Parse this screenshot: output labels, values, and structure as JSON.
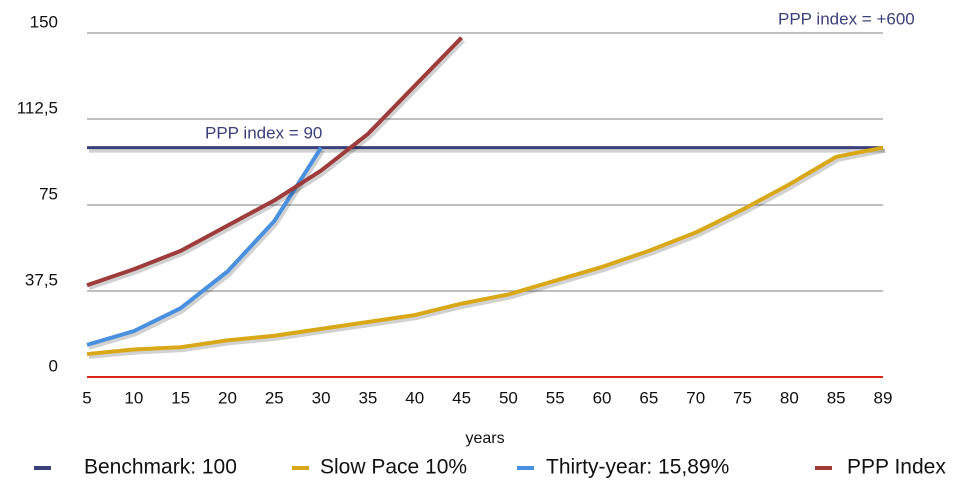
{
  "chart_data": {
    "type": "line",
    "x_label": "years",
    "categories": [
      5,
      10,
      15,
      20,
      25,
      30,
      35,
      40,
      45,
      50,
      55,
      60,
      65,
      70,
      75,
      80,
      85,
      89
    ],
    "ylim": [
      0,
      150
    ],
    "yticks": [
      0,
      {
        "value": 37.5,
        "label": "37,5"
      },
      75,
      {
        "value": 112.5,
        "label": "112,5"
      },
      150
    ],
    "grid": true,
    "legend": "bottom",
    "annotations": [
      "PPP index = 90",
      "PPP index =  +600"
    ],
    "series": [
      {
        "name": "Benchmark: 100",
        "color": "#3b3f7a",
        "values": [
          100,
          100,
          100,
          100,
          100,
          100,
          100,
          100,
          100,
          100,
          100,
          100,
          100,
          100,
          100,
          100,
          100,
          100
        ]
      },
      {
        "name": "Slow Pace 10%",
        "color": "#d9a818",
        "values": [
          10,
          12,
          13,
          16,
          18,
          21,
          24,
          27,
          32,
          36,
          42,
          48,
          55,
          63,
          73,
          84,
          96,
          100
        ]
      },
      {
        "name": "Thirty-year: 15,89%",
        "color": "#4a90e0",
        "values": [
          14,
          20,
          30,
          46,
          68,
          100,
          null,
          null,
          null,
          null,
          null,
          null,
          null,
          null,
          null,
          null,
          null,
          null
        ]
      },
      {
        "name": "PPP Index",
        "color": "#9e3b3b",
        "values": [
          40,
          47,
          55,
          66,
          77,
          90,
          106,
          127,
          148,
          null,
          null,
          null,
          null,
          null,
          null,
          null,
          null,
          null
        ]
      }
    ]
  }
}
